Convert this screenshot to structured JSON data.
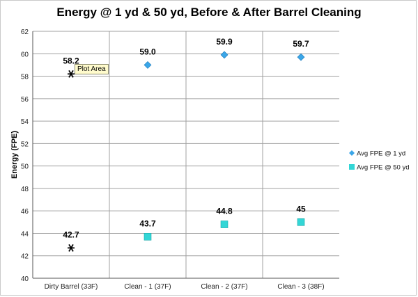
{
  "chart_data": {
    "type": "scatter",
    "title": "Energy @ 1 yd & 50 yd, Before & After Barrel Cleaning",
    "xlabel": "",
    "ylabel": "Energy (FPE)",
    "categories": [
      "Dirty Barrel (33F)",
      "Clean - 1 (37F)",
      "Clean - 2 (37F)",
      "Clean - 3 (38F)"
    ],
    "ylim": [
      40,
      62
    ],
    "yticks": [
      40,
      42,
      44,
      46,
      48,
      50,
      52,
      54,
      56,
      58,
      60,
      62
    ],
    "grid": "horizontal",
    "legend_position": "right",
    "series": [
      {
        "name": "Avg FPE @ 1 yd",
        "color": "#3aa6e8",
        "marker": "diamond",
        "values": [
          58.2,
          59.0,
          59.9,
          59.7
        ],
        "labels": [
          "58.2",
          "59.0",
          "59.9",
          "59.7"
        ]
      },
      {
        "name": "Avg FPE @ 50 yd",
        "color": "#33d6d6",
        "marker": "square",
        "values": [
          42.7,
          43.7,
          44.8,
          45
        ],
        "labels": [
          "42.7",
          "43.7",
          "44.8",
          "45"
        ]
      }
    ],
    "highlighted_category_marker": "asterisk"
  },
  "tooltip": {
    "text": "Plot Area"
  }
}
